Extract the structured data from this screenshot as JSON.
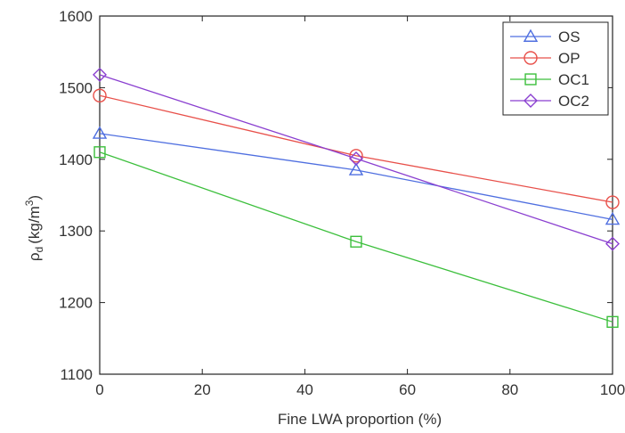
{
  "chart_data": {
    "type": "line",
    "x": [
      0,
      50,
      100
    ],
    "xlabel": "Fine LWA proportion (%)",
    "ylabel": {
      "base": "ρ",
      "sub": "d",
      "unit": "(kg/m",
      "sup": "3",
      "close": ")"
    },
    "xlim": [
      0,
      100
    ],
    "ylim": [
      1100,
      1600
    ],
    "xticks": [
      "0",
      "20",
      "40",
      "60",
      "80",
      "100"
    ],
    "yticks": [
      "1100",
      "1200",
      "1300",
      "1400",
      "1500",
      "1600"
    ],
    "grid": false,
    "legend_position": "top-right",
    "series": [
      {
        "name": "OS",
        "values": [
          1436,
          1385,
          1316
        ],
        "color": "#4f6fe0",
        "marker": "triangle"
      },
      {
        "name": "OP",
        "values": [
          1489,
          1405,
          1340
        ],
        "color": "#e8504a",
        "marker": "circle"
      },
      {
        "name": "OC1",
        "values": [
          1410,
          1285,
          1173
        ],
        "color": "#3cbf3c",
        "marker": "square"
      },
      {
        "name": "OC2",
        "values": [
          1518,
          1401,
          1282
        ],
        "color": "#8a3fd0",
        "marker": "diamond"
      }
    ]
  }
}
